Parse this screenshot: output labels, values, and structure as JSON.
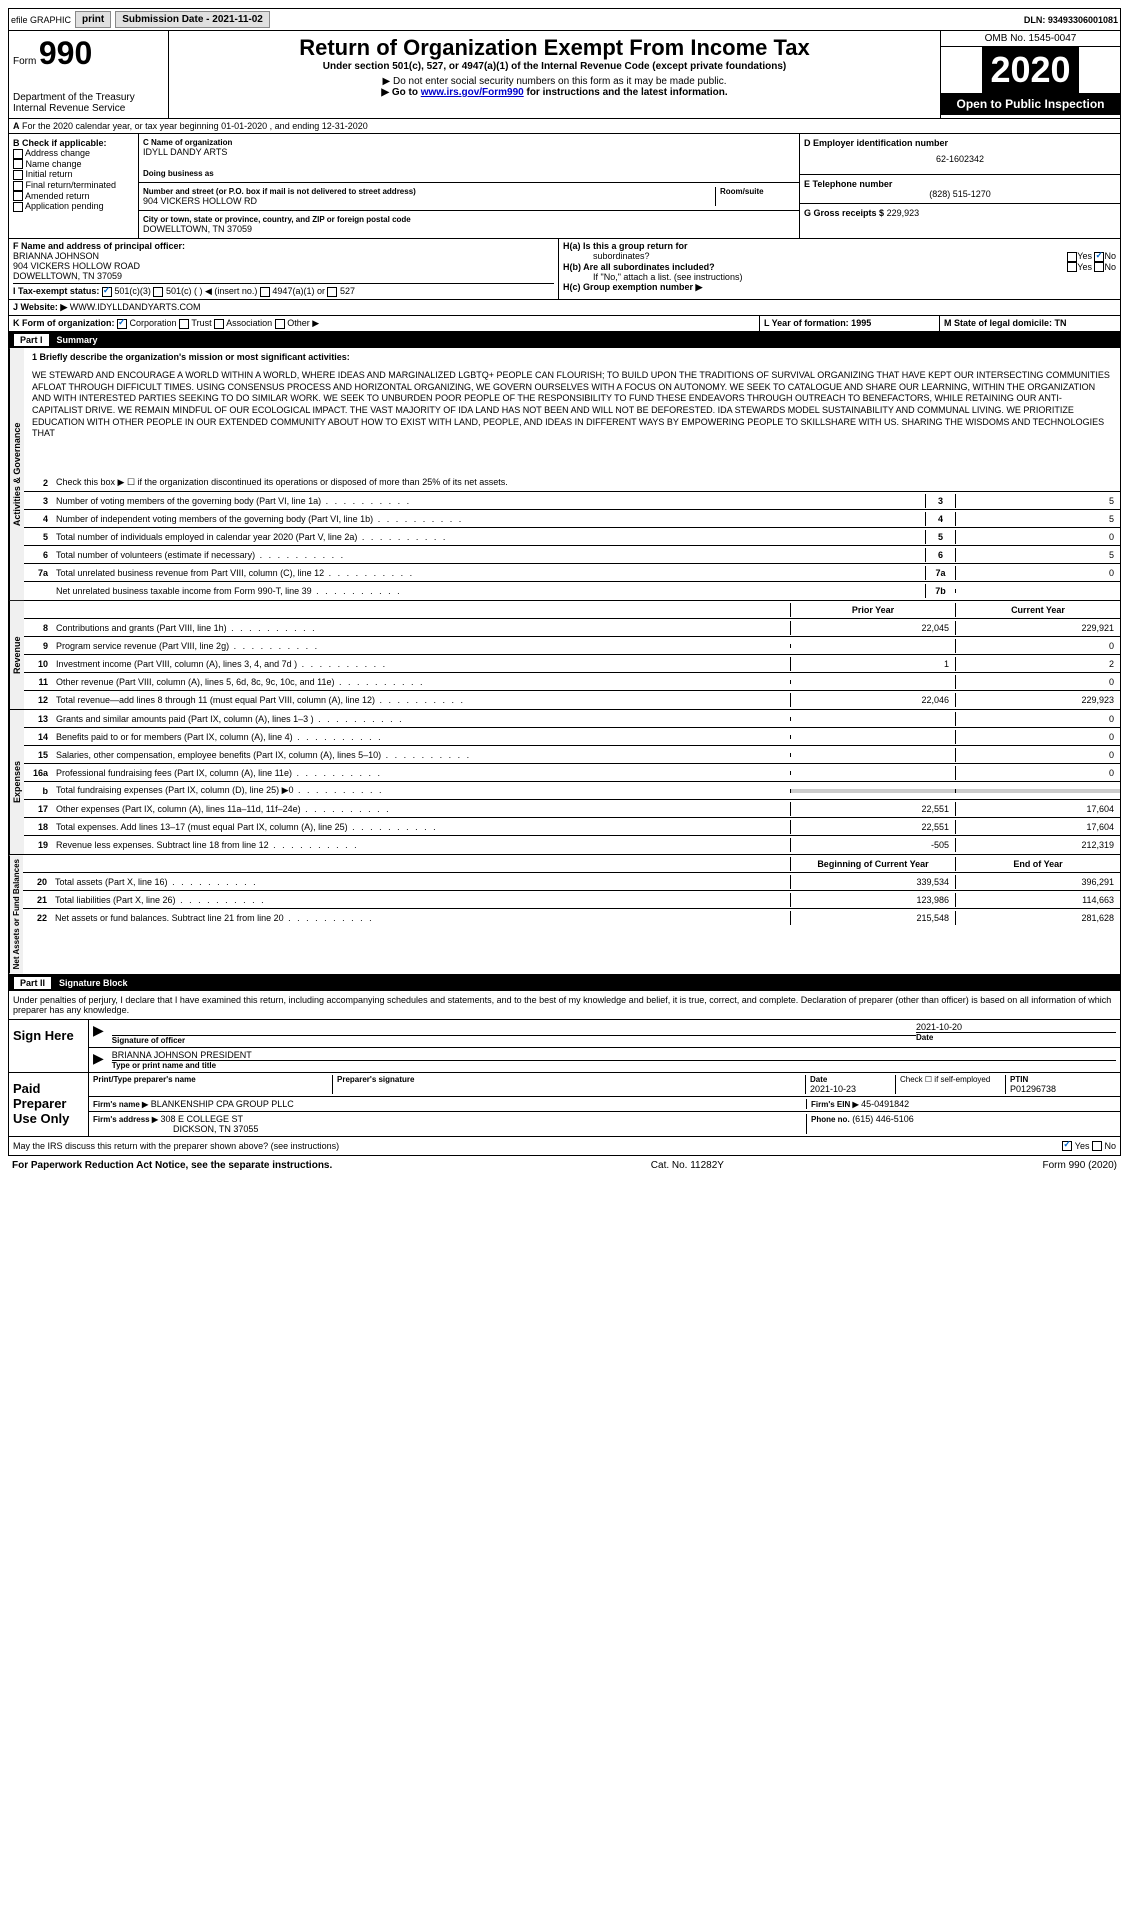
{
  "topbar": {
    "efile": "efile GRAPHIC",
    "print": "print",
    "submission_label": "Submission Date - 2021-11-02",
    "dln": "DLN: 93493306001081"
  },
  "header": {
    "form_prefix": "Form",
    "form_number": "990",
    "dept": "Department of the Treasury\nInternal Revenue Service",
    "title": "Return of Organization Exempt From Income Tax",
    "subtitle": "Under section 501(c), 527, or 4947(a)(1) of the Internal Revenue Code (except private foundations)",
    "note1": "▶ Do not enter social security numbers on this form as it may be made public.",
    "note2_pre": "▶ Go to ",
    "note2_link": "www.irs.gov/Form990",
    "note2_post": " for instructions and the latest information.",
    "omb": "OMB No. 1545-0047",
    "year": "2020",
    "open": "Open to Public Inspection"
  },
  "period": {
    "text": "For the 2020 calendar year, or tax year beginning 01-01-2020   , and ending 12-31-2020"
  },
  "sectionB": {
    "label": "B Check if applicable:",
    "items": [
      "Address change",
      "Name change",
      "Initial return",
      "Final return/terminated",
      "Amended return",
      "Application pending"
    ]
  },
  "sectionC": {
    "name_label": "C Name of organization",
    "name": "IDYLL DANDY ARTS",
    "dba_label": "Doing business as",
    "addr_label": "Number and street (or P.O. box if mail is not delivered to street address)",
    "addr": "904 VICKERS HOLLOW RD",
    "room_label": "Room/suite",
    "city_label": "City or town, state or province, country, and ZIP or foreign postal code",
    "city": "DOWELLTOWN, TN  37059"
  },
  "sectionD": {
    "label": "D Employer identification number",
    "value": "62-1602342"
  },
  "sectionE": {
    "label": "E Telephone number",
    "value": "(828) 515-1270"
  },
  "sectionG": {
    "label": "G Gross receipts $",
    "value": "229,923"
  },
  "sectionF": {
    "label": "F  Name and address of principal officer:",
    "name": "BRIANNA JOHNSON",
    "addr1": "904 VICKERS HOLLOW ROAD",
    "addr2": "DOWELLTOWN, TN  37059"
  },
  "sectionH": {
    "ha_label": "H(a)  Is this a group return for",
    "ha_sub": "subordinates?",
    "hb_label": "H(b)  Are all subordinates included?",
    "hb_note": "If \"No,\" attach a list. (see instructions)",
    "hc_label": "H(c)  Group exemption number ▶"
  },
  "taxStatus": {
    "label": "I  Tax-exempt status:",
    "opt1": "501(c)(3)",
    "opt2": "501(c) (   ) ◀ (insert no.)",
    "opt3": "4947(a)(1) or",
    "opt4": "527"
  },
  "website": {
    "label": "J  Website: ▶",
    "value": "WWW.IDYLLDANDYARTS.COM"
  },
  "formOrg": {
    "label": "K Form of organization:",
    "opts": [
      "Corporation",
      "Trust",
      "Association",
      "Other ▶"
    ]
  },
  "yearFormed": {
    "label": "L Year of formation: 1995"
  },
  "domicile": {
    "label": "M State of legal domicile: TN"
  },
  "part1": {
    "header": "Summary",
    "line1_label": "1  Briefly describe the organization's mission or most significant activities:",
    "mission": "WE STEWARD AND ENCOURAGE A WORLD WITHIN A WORLD, WHERE IDEAS AND MARGINALIZED LGBTQ+ PEOPLE CAN FLOURISH; TO BUILD UPON THE TRADITIONS OF SURVIVAL ORGANIZING THAT HAVE KEPT OUR INTERSECTING COMMUNITIES AFLOAT THROUGH DIFFICULT TIMES. USING CONSENSUS PROCESS AND HORIZONTAL ORGANIZING, WE GOVERN OURSELVES WITH A FOCUS ON AUTONOMY. WE SEEK TO CATALOGUE AND SHARE OUR LEARNING, WITHIN THE ORGANIZATION AND WITH INTERESTED PARTIES SEEKING TO DO SIMILAR WORK. WE SEEK TO UNBURDEN POOR PEOPLE OF THE RESPONSIBILITY TO FUND THESE ENDEAVORS THROUGH OUTREACH TO BENEFACTORS, WHILE RETAINING OUR ANTI-CAPITALIST DRIVE. WE REMAIN MINDFUL OF OUR ECOLOGICAL IMPACT. THE VAST MAJORITY OF IDA LAND HAS NOT BEEN AND WILL NOT BE DEFORESTED. IDA STEWARDS MODEL SUSTAINABILITY AND COMMUNAL LIVING. WE PRIORITIZE EDUCATION WITH OTHER PEOPLE IN OUR EXTENDED COMMUNITY ABOUT HOW TO EXIST WITH LAND, PEOPLE, AND IDEAS IN DIFFERENT WAYS BY EMPOWERING PEOPLE TO SKILLSHARE WITH US. SHARING THE WISDOMS AND TECHNOLOGIES THAT"
  },
  "activities": {
    "line2": "Check this box ▶ ☐ if the organization discontinued its operations or disposed of more than 25% of its net assets.",
    "rows": [
      {
        "num": "3",
        "text": "Number of voting members of the governing body (Part VI, line 1a)",
        "box": "3",
        "val": "5"
      },
      {
        "num": "4",
        "text": "Number of independent voting members of the governing body (Part VI, line 1b)",
        "box": "4",
        "val": "5"
      },
      {
        "num": "5",
        "text": "Total number of individuals employed in calendar year 2020 (Part V, line 2a)",
        "box": "5",
        "val": "0"
      },
      {
        "num": "6",
        "text": "Total number of volunteers (estimate if necessary)",
        "box": "6",
        "val": "5"
      },
      {
        "num": "7a",
        "text": "Total unrelated business revenue from Part VIII, column (C), line 12",
        "box": "7a",
        "val": "0"
      },
      {
        "num": "",
        "text": "Net unrelated business taxable income from Form 990-T, line 39",
        "box": "7b",
        "val": ""
      }
    ]
  },
  "revenue": {
    "prior_label": "Prior Year",
    "current_label": "Current Year",
    "rows": [
      {
        "num": "8",
        "text": "Contributions and grants (Part VIII, line 1h)",
        "prior": "22,045",
        "curr": "229,921"
      },
      {
        "num": "9",
        "text": "Program service revenue (Part VIII, line 2g)",
        "prior": "",
        "curr": "0"
      },
      {
        "num": "10",
        "text": "Investment income (Part VIII, column (A), lines 3, 4, and 7d )",
        "prior": "1",
        "curr": "2"
      },
      {
        "num": "11",
        "text": "Other revenue (Part VIII, column (A), lines 5, 6d, 8c, 9c, 10c, and 11e)",
        "prior": "",
        "curr": "0"
      },
      {
        "num": "12",
        "text": "Total revenue—add lines 8 through 11 (must equal Part VIII, column (A), line 12)",
        "prior": "22,046",
        "curr": "229,923"
      }
    ]
  },
  "expenses": {
    "rows": [
      {
        "num": "13",
        "text": "Grants and similar amounts paid (Part IX, column (A), lines 1–3 )",
        "prior": "",
        "curr": "0"
      },
      {
        "num": "14",
        "text": "Benefits paid to or for members (Part IX, column (A), line 4)",
        "prior": "",
        "curr": "0"
      },
      {
        "num": "15",
        "text": "Salaries, other compensation, employee benefits (Part IX, column (A), lines 5–10)",
        "prior": "",
        "curr": "0"
      },
      {
        "num": "16a",
        "text": "Professional fundraising fees (Part IX, column (A), line 11e)",
        "prior": "",
        "curr": "0"
      },
      {
        "num": "b",
        "text": "Total fundraising expenses (Part IX, column (D), line 25) ▶0",
        "prior": "GRAY",
        "curr": "GRAY"
      },
      {
        "num": "17",
        "text": "Other expenses (Part IX, column (A), lines 11a–11d, 11f–24e)",
        "prior": "22,551",
        "curr": "17,604"
      },
      {
        "num": "18",
        "text": "Total expenses. Add lines 13–17 (must equal Part IX, column (A), line 25)",
        "prior": "22,551",
        "curr": "17,604"
      },
      {
        "num": "19",
        "text": "Revenue less expenses. Subtract line 18 from line 12",
        "prior": "-505",
        "curr": "212,319"
      }
    ]
  },
  "netassets": {
    "begin_label": "Beginning of Current Year",
    "end_label": "End of Year",
    "rows": [
      {
        "num": "20",
        "text": "Total assets (Part X, line 16)",
        "prior": "339,534",
        "curr": "396,291"
      },
      {
        "num": "21",
        "text": "Total liabilities (Part X, line 26)",
        "prior": "123,986",
        "curr": "114,663"
      },
      {
        "num": "22",
        "text": "Net assets or fund balances. Subtract line 21 from line 20",
        "prior": "215,548",
        "curr": "281,628"
      }
    ]
  },
  "part2": {
    "header": "Signature Block",
    "penalty": "Under penalties of perjury, I declare that I have examined this return, including accompanying schedules and statements, and to the best of my knowledge and belief, it is true, correct, and complete. Declaration of preparer (other than officer) is based on all information of which preparer has any knowledge."
  },
  "sign": {
    "label": "Sign Here",
    "sig_label": "Signature of officer",
    "date": "2021-10-20",
    "date_label": "Date",
    "name": "BRIANNA JOHNSON  PRESIDENT",
    "name_label": "Type or print name and title"
  },
  "preparer": {
    "label": "Paid Preparer Use Only",
    "print_label": "Print/Type preparer's name",
    "sig_label": "Preparer's signature",
    "date_label": "Date",
    "date": "2021-10-23",
    "check_label": "Check ☐ if self-employed",
    "ptin_label": "PTIN",
    "ptin": "P01296738",
    "firm_name_label": "Firm's name    ▶",
    "firm_name": "BLANKENSHIP CPA GROUP PLLC",
    "firm_ein_label": "Firm's EIN ▶",
    "firm_ein": "45-0491842",
    "firm_addr_label": "Firm's address ▶",
    "firm_addr": "308 E COLLEGE ST",
    "firm_city": "DICKSON, TN  37055",
    "phone_label": "Phone no.",
    "phone": "(615) 446-5106"
  },
  "footer": {
    "discuss": "May the IRS discuss this return with the preparer shown above? (see instructions)",
    "paperwork": "For Paperwork Reduction Act Notice, see the separate instructions.",
    "cat": "Cat. No. 11282Y",
    "form": "Form 990 (2020)"
  },
  "labels": {
    "activities_governance": "Activities & Governance",
    "revenue": "Revenue",
    "expenses": "Expenses",
    "net_assets": "Net Assets or Fund Balances",
    "yes": "Yes",
    "no": "No",
    "part1": "Part I",
    "part2": "Part II",
    "a_prefix": "A"
  }
}
